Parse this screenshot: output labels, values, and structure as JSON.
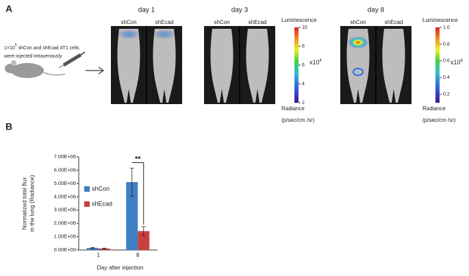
{
  "panel_a": {
    "label": "A",
    "injection": {
      "prefix": "1×10",
      "exponent": "5",
      "line1_rest": " shCon and shEcad 4T1 cells",
      "line2": "were injected intravenously"
    },
    "groups": [
      {
        "title": "day 1",
        "left": "shCon",
        "right": "shEcad"
      },
      {
        "title": "day 3",
        "left": "shCon",
        "right": "shEcad"
      },
      {
        "title": "day 8",
        "left": "shCon",
        "right": "shEcad"
      }
    ],
    "colorbars": [
      {
        "title": "Luminescence",
        "multiplier": "x10",
        "exponent": "4",
        "lim": [
          2,
          10
        ],
        "ticks": [
          10,
          8,
          6,
          4,
          2
        ],
        "unit_name": "Radiance",
        "unit": "(p/sec/cm /sr)"
      },
      {
        "title": "Luminescence",
        "multiplier": "x10",
        "exponent": "6",
        "lim": [
          0.1,
          1
        ],
        "ticks": [
          {
            "value": 1,
            "label": "1.0"
          },
          {
            "value": 0.8,
            "label": "0.8"
          },
          {
            "value": 0.6,
            "label": "0.6"
          },
          {
            "value": 0.4,
            "label": "0.4"
          },
          {
            "value": 0.2,
            "label": "0.2"
          }
        ],
        "unit_name": "Radiance",
        "unit": "(p/sec/cm /sr)"
      }
    ]
  },
  "panel_b_label": "B",
  "chart_data": {
    "type": "bar",
    "ylabel": [
      "Normalized total flux",
      "in the lung (Radiance)"
    ],
    "xlabel": "Day after injection",
    "categories": [
      "1",
      "8"
    ],
    "series": [
      {
        "name": "shCon",
        "color": "#3f7fc4",
        "values": [
          150000,
          5100000
        ],
        "errors": [
          40000,
          1050000
        ]
      },
      {
        "name": "shEcad",
        "color": "#c9413f",
        "values": [
          110000,
          1420000
        ],
        "errors": [
          30000,
          330000
        ]
      }
    ],
    "ylim": [
      0,
      7000000
    ],
    "yticks": [
      {
        "value": 0,
        "label": "0.00E+00"
      },
      {
        "value": 1000000,
        "label": "1.00E+06"
      },
      {
        "value": 2000000,
        "label": "2.00E+06"
      },
      {
        "value": 3000000,
        "label": "3.00E+06"
      },
      {
        "value": 4000000,
        "label": "4.00E+06"
      },
      {
        "value": 5000000,
        "label": "5.00E+06"
      },
      {
        "value": 6000000,
        "label": "6.00E+06"
      },
      {
        "value": 7000000,
        "label": "7.00E+06"
      }
    ],
    "annotation": "**",
    "legend": "left"
  }
}
